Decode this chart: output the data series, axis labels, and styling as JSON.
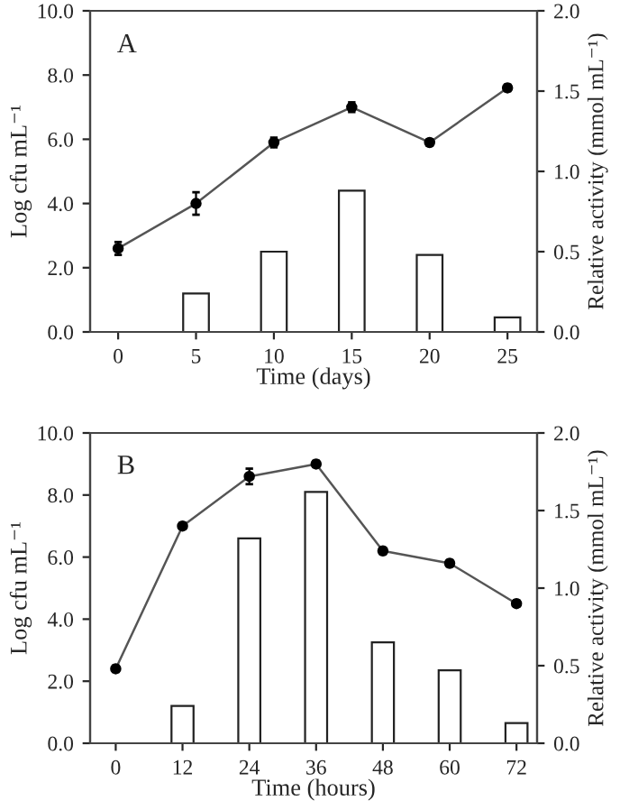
{
  "chart_data": [
    {
      "type": "line",
      "xlabel": "Time (days)",
      "ylabel": "Log cfu mL⁻¹",
      "y2label": "Relative activity (mmol mL⁻¹)",
      "annotations": [
        "A"
      ],
      "xlim": [
        -1.8,
        26.9
      ],
      "xticks": [
        0,
        5,
        10,
        15,
        20,
        25
      ],
      "ylim": [
        0,
        10
      ],
      "yticks": [
        {
          "value": 0,
          "label": "0.0"
        },
        {
          "value": 2,
          "label": "2.0"
        },
        {
          "value": 4,
          "label": "4.0"
        },
        {
          "value": 6,
          "label": "6.0"
        },
        {
          "value": 8,
          "label": "8.0"
        },
        {
          "value": 10,
          "label": "10.0"
        }
      ],
      "y2lim": [
        0,
        2
      ],
      "y2ticks": [
        {
          "value": 0,
          "label": "0.0"
        },
        {
          "value": 0.5,
          "label": "0.5"
        },
        {
          "value": 1,
          "label": "1.0"
        },
        {
          "value": 1.5,
          "label": "1.5"
        },
        {
          "value": 2,
          "label": "2.0"
        }
      ],
      "series": [
        {
          "type": "bar",
          "axis": "y2",
          "color": "#ffffff",
          "x": [
            5,
            10,
            15,
            20,
            25
          ],
          "values": [
            0.24,
            0.5,
            0.88,
            0.48,
            0.09
          ]
        },
        {
          "axis": "y",
          "color": "#000000",
          "marker": "circle",
          "x": [
            0,
            5,
            10,
            15,
            20,
            25
          ],
          "values": [
            2.6,
            4.0,
            5.9,
            7.0,
            5.9,
            7.6
          ],
          "errors": [
            0.2,
            0.35,
            0.15,
            0.15,
            0.1,
            0.1
          ]
        }
      ],
      "grid": false
    },
    {
      "type": "line",
      "xlabel": "Time (hours)",
      "ylabel": "Log cfu mL⁻¹",
      "y2label": "Relative activity (mmol mL⁻¹)",
      "annotations": [
        "B"
      ],
      "xlim": [
        -4.6,
        75.7
      ],
      "xticks": [
        0,
        12,
        24,
        36,
        48,
        60,
        72
      ],
      "ylim": [
        0,
        10
      ],
      "yticks": [
        {
          "value": 0,
          "label": "0.0"
        },
        {
          "value": 2,
          "label": "2.0"
        },
        {
          "value": 4,
          "label": "4.0"
        },
        {
          "value": 6,
          "label": "6.0"
        },
        {
          "value": 8,
          "label": "8.0"
        },
        {
          "value": 10,
          "label": "10.0"
        }
      ],
      "y2lim": [
        0,
        2
      ],
      "y2ticks": [
        {
          "value": 0,
          "label": "0.0"
        },
        {
          "value": 0.5,
          "label": "0.5"
        },
        {
          "value": 1,
          "label": "1.0"
        },
        {
          "value": 1.5,
          "label": "1.5"
        },
        {
          "value": 2,
          "label": "2.0"
        }
      ],
      "series": [
        {
          "type": "bar",
          "axis": "y2",
          "color": "#ffffff",
          "x": [
            12,
            24,
            36,
            48,
            60,
            72
          ],
          "values": [
            0.24,
            1.32,
            1.62,
            0.65,
            0.47,
            0.13
          ]
        },
        {
          "axis": "y",
          "color": "#000000",
          "marker": "circle",
          "x": [
            0,
            12,
            24,
            36,
            48,
            60,
            72
          ],
          "values": [
            2.4,
            7.0,
            8.6,
            9.0,
            6.2,
            5.8,
            4.5
          ],
          "errors": [
            0.1,
            0.1,
            0.25,
            0.1,
            0.1,
            0.1,
            0.1
          ]
        }
      ],
      "grid": false
    }
  ]
}
